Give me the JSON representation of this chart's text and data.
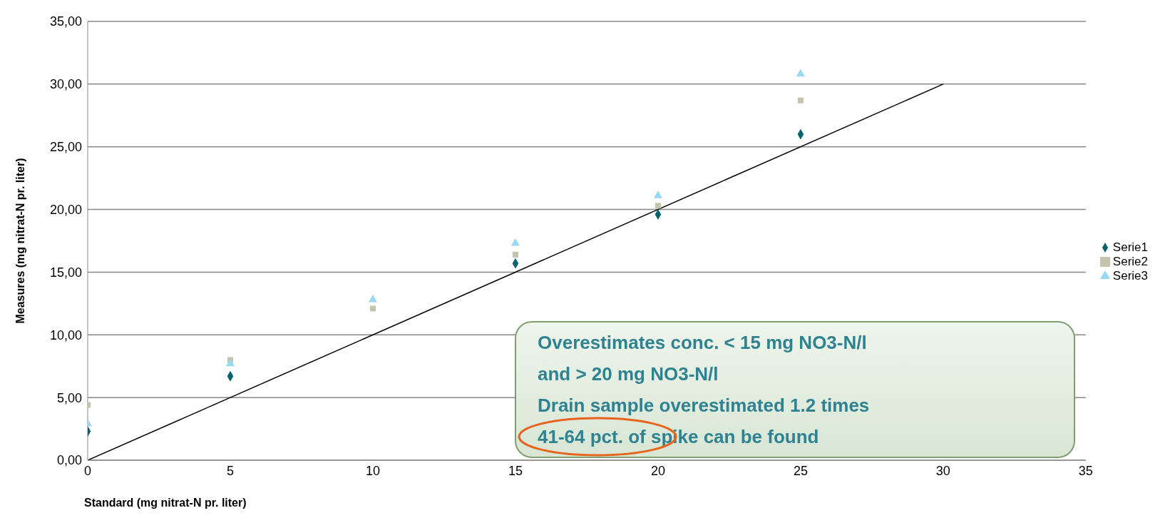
{
  "chart_data": {
    "type": "scatter",
    "xlabel": "Standard (mg nitrat-N pr. liter)",
    "ylabel": "Measures (mg nitrat-N pr. liter)",
    "x": [
      0,
      5,
      10,
      15,
      20,
      25
    ],
    "series": [
      {
        "name": "Serie1",
        "color": "#05636f",
        "marker": "diamond",
        "values": [
          2.3,
          6.7,
          null,
          15.7,
          19.6,
          26.0
        ]
      },
      {
        "name": "Serie2",
        "color": "#c4c3ad",
        "marker": "square",
        "values": [
          4.4,
          8.0,
          12.1,
          16.4,
          20.3,
          28.7
        ]
      },
      {
        "name": "Serie3",
        "color": "#97d8f5",
        "marker": "triangle",
        "values": [
          2.9,
          7.7,
          12.8,
          17.3,
          21.1,
          30.8
        ]
      },
      {
        "type": "line",
        "color": "#000000",
        "marker": "none",
        "x": [
          0,
          30
        ],
        "values": [
          0,
          30
        ]
      }
    ],
    "xlim": [
      0,
      35
    ],
    "xticks": [
      0,
      5,
      10,
      15,
      20,
      25,
      30,
      35
    ],
    "ylim": [
      0,
      35
    ],
    "yticks": [
      {
        "value": 0,
        "label": "0,00"
      },
      {
        "value": 5,
        "label": "5,00"
      },
      {
        "value": 10,
        "label": "10,00"
      },
      {
        "value": 15,
        "label": "15,00"
      },
      {
        "value": 20,
        "label": "20,00"
      },
      {
        "value": 25,
        "label": "25,00"
      },
      {
        "value": 30,
        "label": "30,00"
      },
      {
        "value": 35,
        "label": "35,00"
      }
    ],
    "grid": "y",
    "legend": "right",
    "annotations": [
      "Overestimates conc. < 15 mg NO3-N/l",
      "and > 20 mg NO3-N/l",
      "Drain sample overestimated 1.2 times",
      "41-64 pct. of spike can be found"
    ]
  }
}
